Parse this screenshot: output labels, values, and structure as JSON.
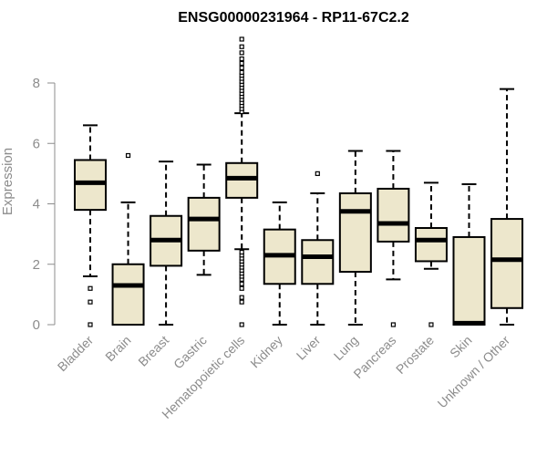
{
  "chart_data": {
    "type": "box",
    "title": "ENSG00000231964 - RP11-67C2.2",
    "xlabel": "",
    "ylabel": "Expression",
    "ylim": [
      0,
      9.5
    ],
    "yticks": [
      0,
      2,
      4,
      6,
      8
    ],
    "categories": [
      "Bladder",
      "Brain",
      "Breast",
      "Gastric",
      "Hematopoietic cells",
      "Kidney",
      "Liver",
      "Lung",
      "Pancreas",
      "Prostate",
      "Skin",
      "Unknown / Other"
    ],
    "box_fill": "#ede7cc",
    "series": [
      {
        "name": "Bladder",
        "whisker_low": 1.6,
        "q1": 3.8,
        "median": 4.7,
        "q3": 5.45,
        "whisker_high": 6.6,
        "outliers": [
          0,
          0.75,
          1.2
        ]
      },
      {
        "name": "Brain",
        "whisker_low": 0,
        "q1": 0,
        "median": 1.3,
        "q3": 2.0,
        "whisker_high": 4.05,
        "outliers": [
          5.6
        ]
      },
      {
        "name": "Breast",
        "whisker_low": 0,
        "q1": 1.95,
        "median": 2.8,
        "q3": 3.6,
        "whisker_high": 5.4,
        "outliers": []
      },
      {
        "name": "Gastric",
        "whisker_low": 1.65,
        "q1": 2.45,
        "median": 3.5,
        "q3": 4.2,
        "whisker_high": 5.3,
        "outliers": []
      },
      {
        "name": "Hematopoietic cells",
        "whisker_low": 2.5,
        "q1": 4.2,
        "median": 4.85,
        "q3": 5.35,
        "whisker_high": 7.0,
        "outliers": [
          0,
          0.75,
          0.9,
          1.2,
          1.35,
          1.5,
          1.6,
          1.7,
          1.8,
          1.9,
          2.0,
          2.1,
          2.2,
          2.3,
          2.4,
          7.05,
          7.15,
          7.25,
          7.35,
          7.45,
          7.55,
          7.65,
          7.75,
          7.85,
          7.95,
          8.05,
          8.15,
          8.25,
          8.35,
          8.5,
          8.65,
          8.8,
          9.0,
          9.2,
          9.45
        ]
      },
      {
        "name": "Kidney",
        "whisker_low": 0,
        "q1": 1.35,
        "median": 2.3,
        "q3": 3.15,
        "whisker_high": 4.05,
        "outliers": []
      },
      {
        "name": "Liver",
        "whisker_low": 0,
        "q1": 1.35,
        "median": 2.25,
        "q3": 2.8,
        "whisker_high": 4.35,
        "outliers": [
          5.0
        ]
      },
      {
        "name": "Lung",
        "whisker_low": 0,
        "q1": 1.75,
        "median": 3.75,
        "q3": 4.35,
        "whisker_high": 5.75,
        "outliers": []
      },
      {
        "name": "Pancreas",
        "whisker_low": 1.5,
        "q1": 2.75,
        "median": 3.35,
        "q3": 4.5,
        "whisker_high": 5.75,
        "outliers": [
          0
        ]
      },
      {
        "name": "Prostate",
        "whisker_low": 1.85,
        "q1": 2.1,
        "median": 2.8,
        "q3": 3.2,
        "whisker_high": 4.7,
        "outliers": [
          0
        ]
      },
      {
        "name": "Skin",
        "whisker_low": 0,
        "q1": 0,
        "median": 0.05,
        "q3": 2.9,
        "whisker_high": 4.65,
        "outliers": []
      },
      {
        "name": "Unknown / Other",
        "whisker_low": 0,
        "q1": 0.55,
        "median": 2.15,
        "q3": 3.5,
        "whisker_high": 7.8,
        "outliers": []
      }
    ]
  }
}
